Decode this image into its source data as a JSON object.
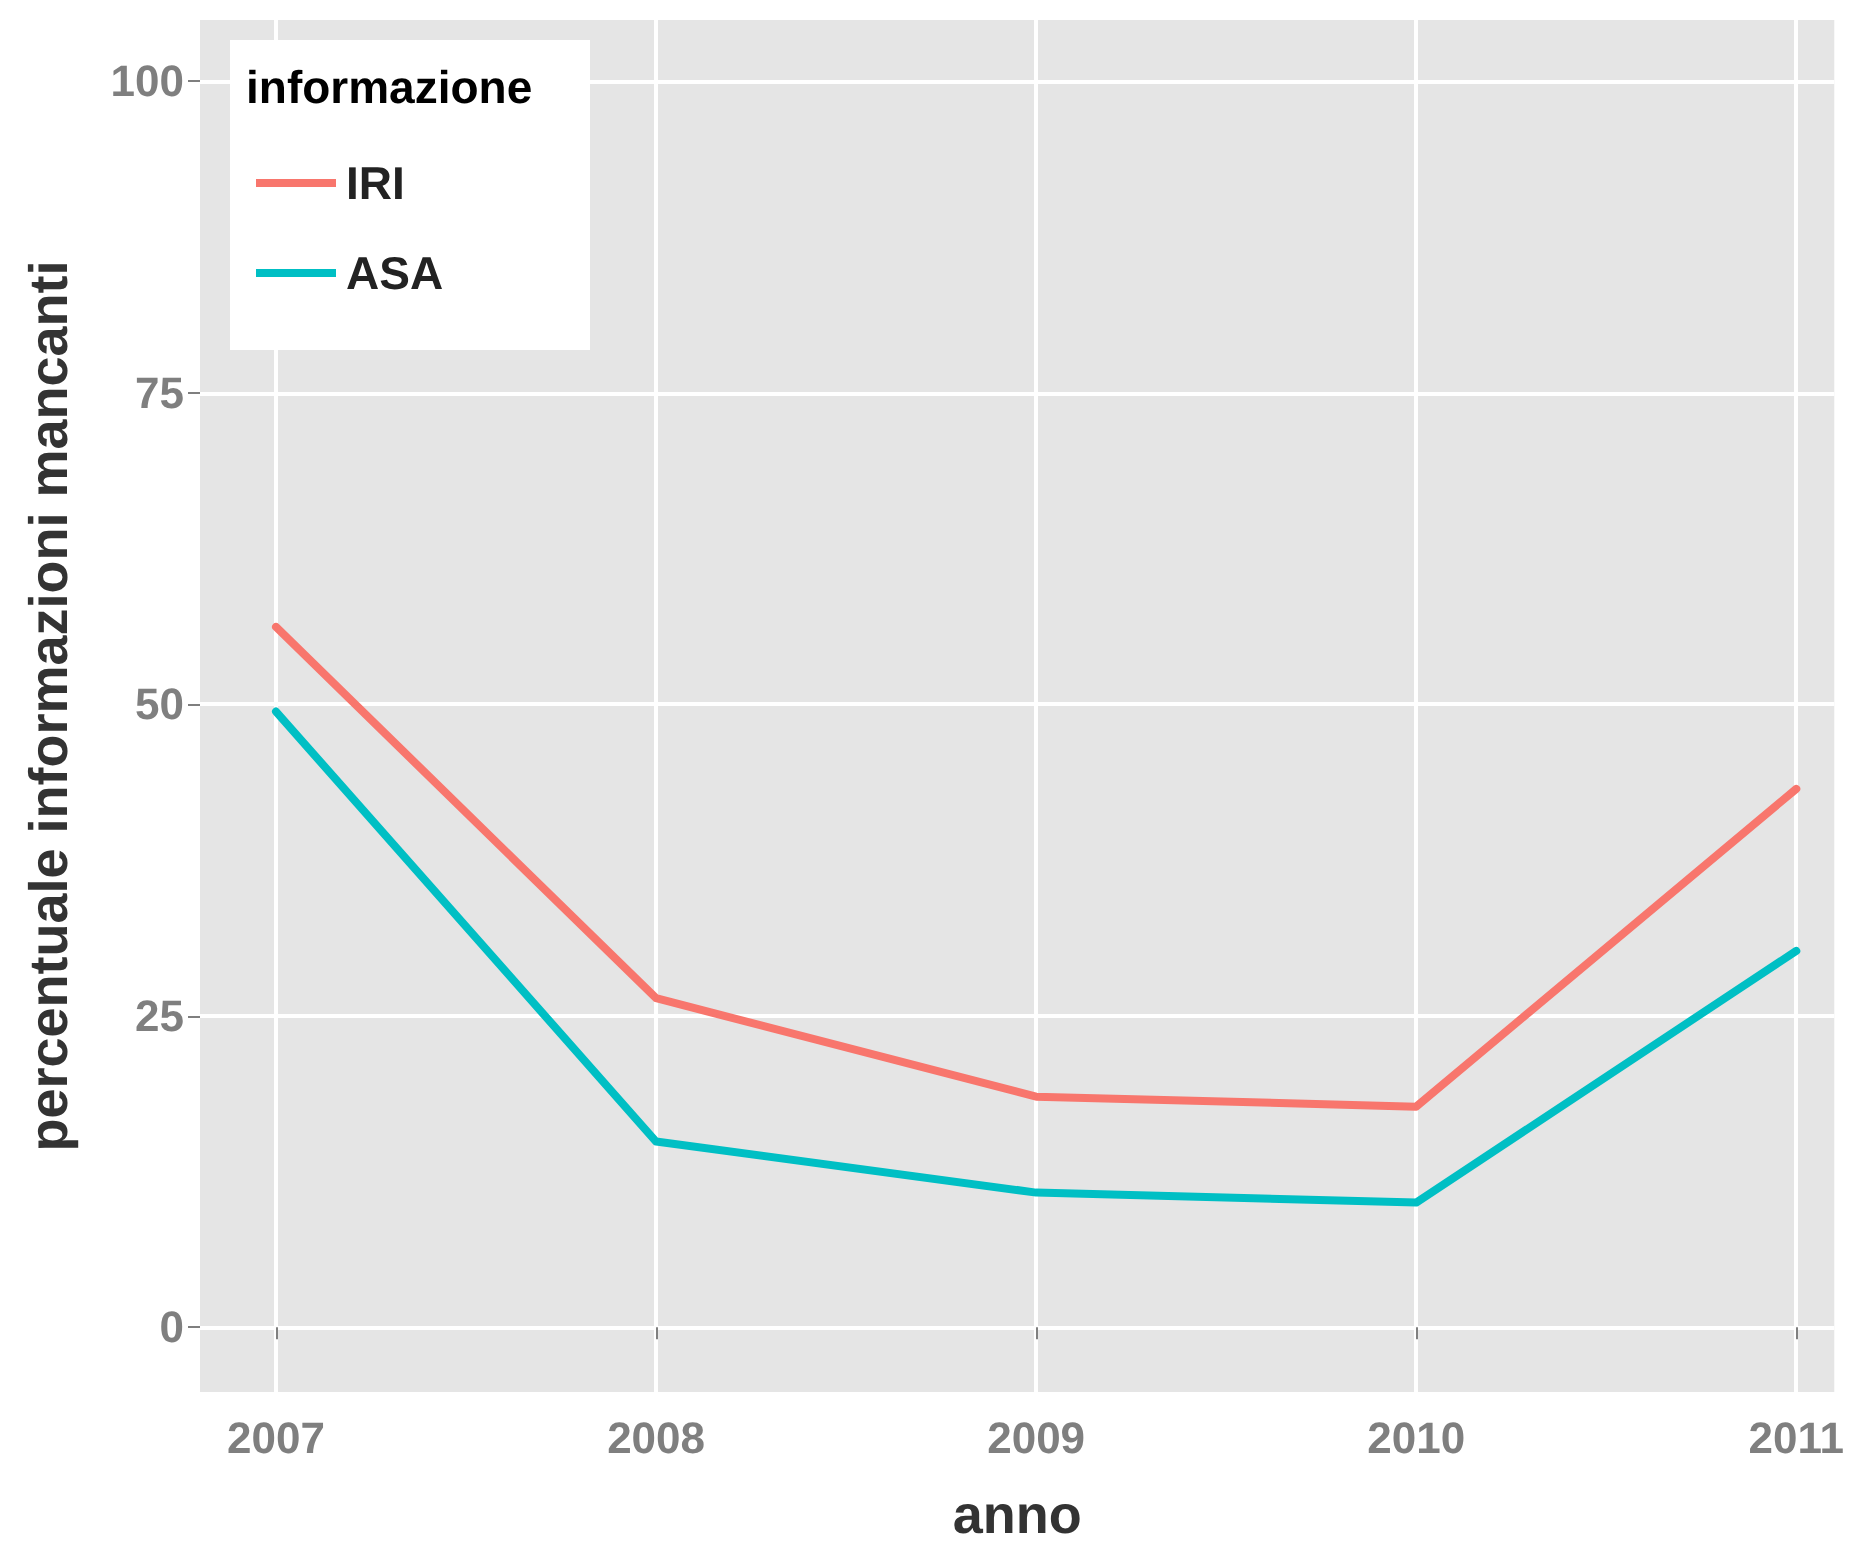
{
  "chart_data": {
    "type": "line",
    "xlabel": "anno",
    "ylabel": "percentuale informazioni mancanti",
    "legend_title": "informazione",
    "x": [
      2007,
      2008,
      2009,
      2010,
      2011
    ],
    "series": [
      {
        "name": "IRI",
        "color": "#f8766d",
        "values": [
          56.2,
          26.4,
          18.5,
          17.7,
          43.2
        ]
      },
      {
        "name": "ASA",
        "color": "#00bfc4",
        "values": [
          49.4,
          14.9,
          10.8,
          10.0,
          30.2
        ]
      }
    ],
    "xlim": [
      2006.8,
      2011.1
    ],
    "xticks": [
      2007,
      2008,
      2009,
      2010,
      2011
    ],
    "ylim": [
      -5.2,
      104.9
    ],
    "yticks": [
      0,
      25,
      50,
      75,
      100
    ],
    "grid": true,
    "legend": "top left",
    "marker": "none",
    "line_style": "solid"
  }
}
